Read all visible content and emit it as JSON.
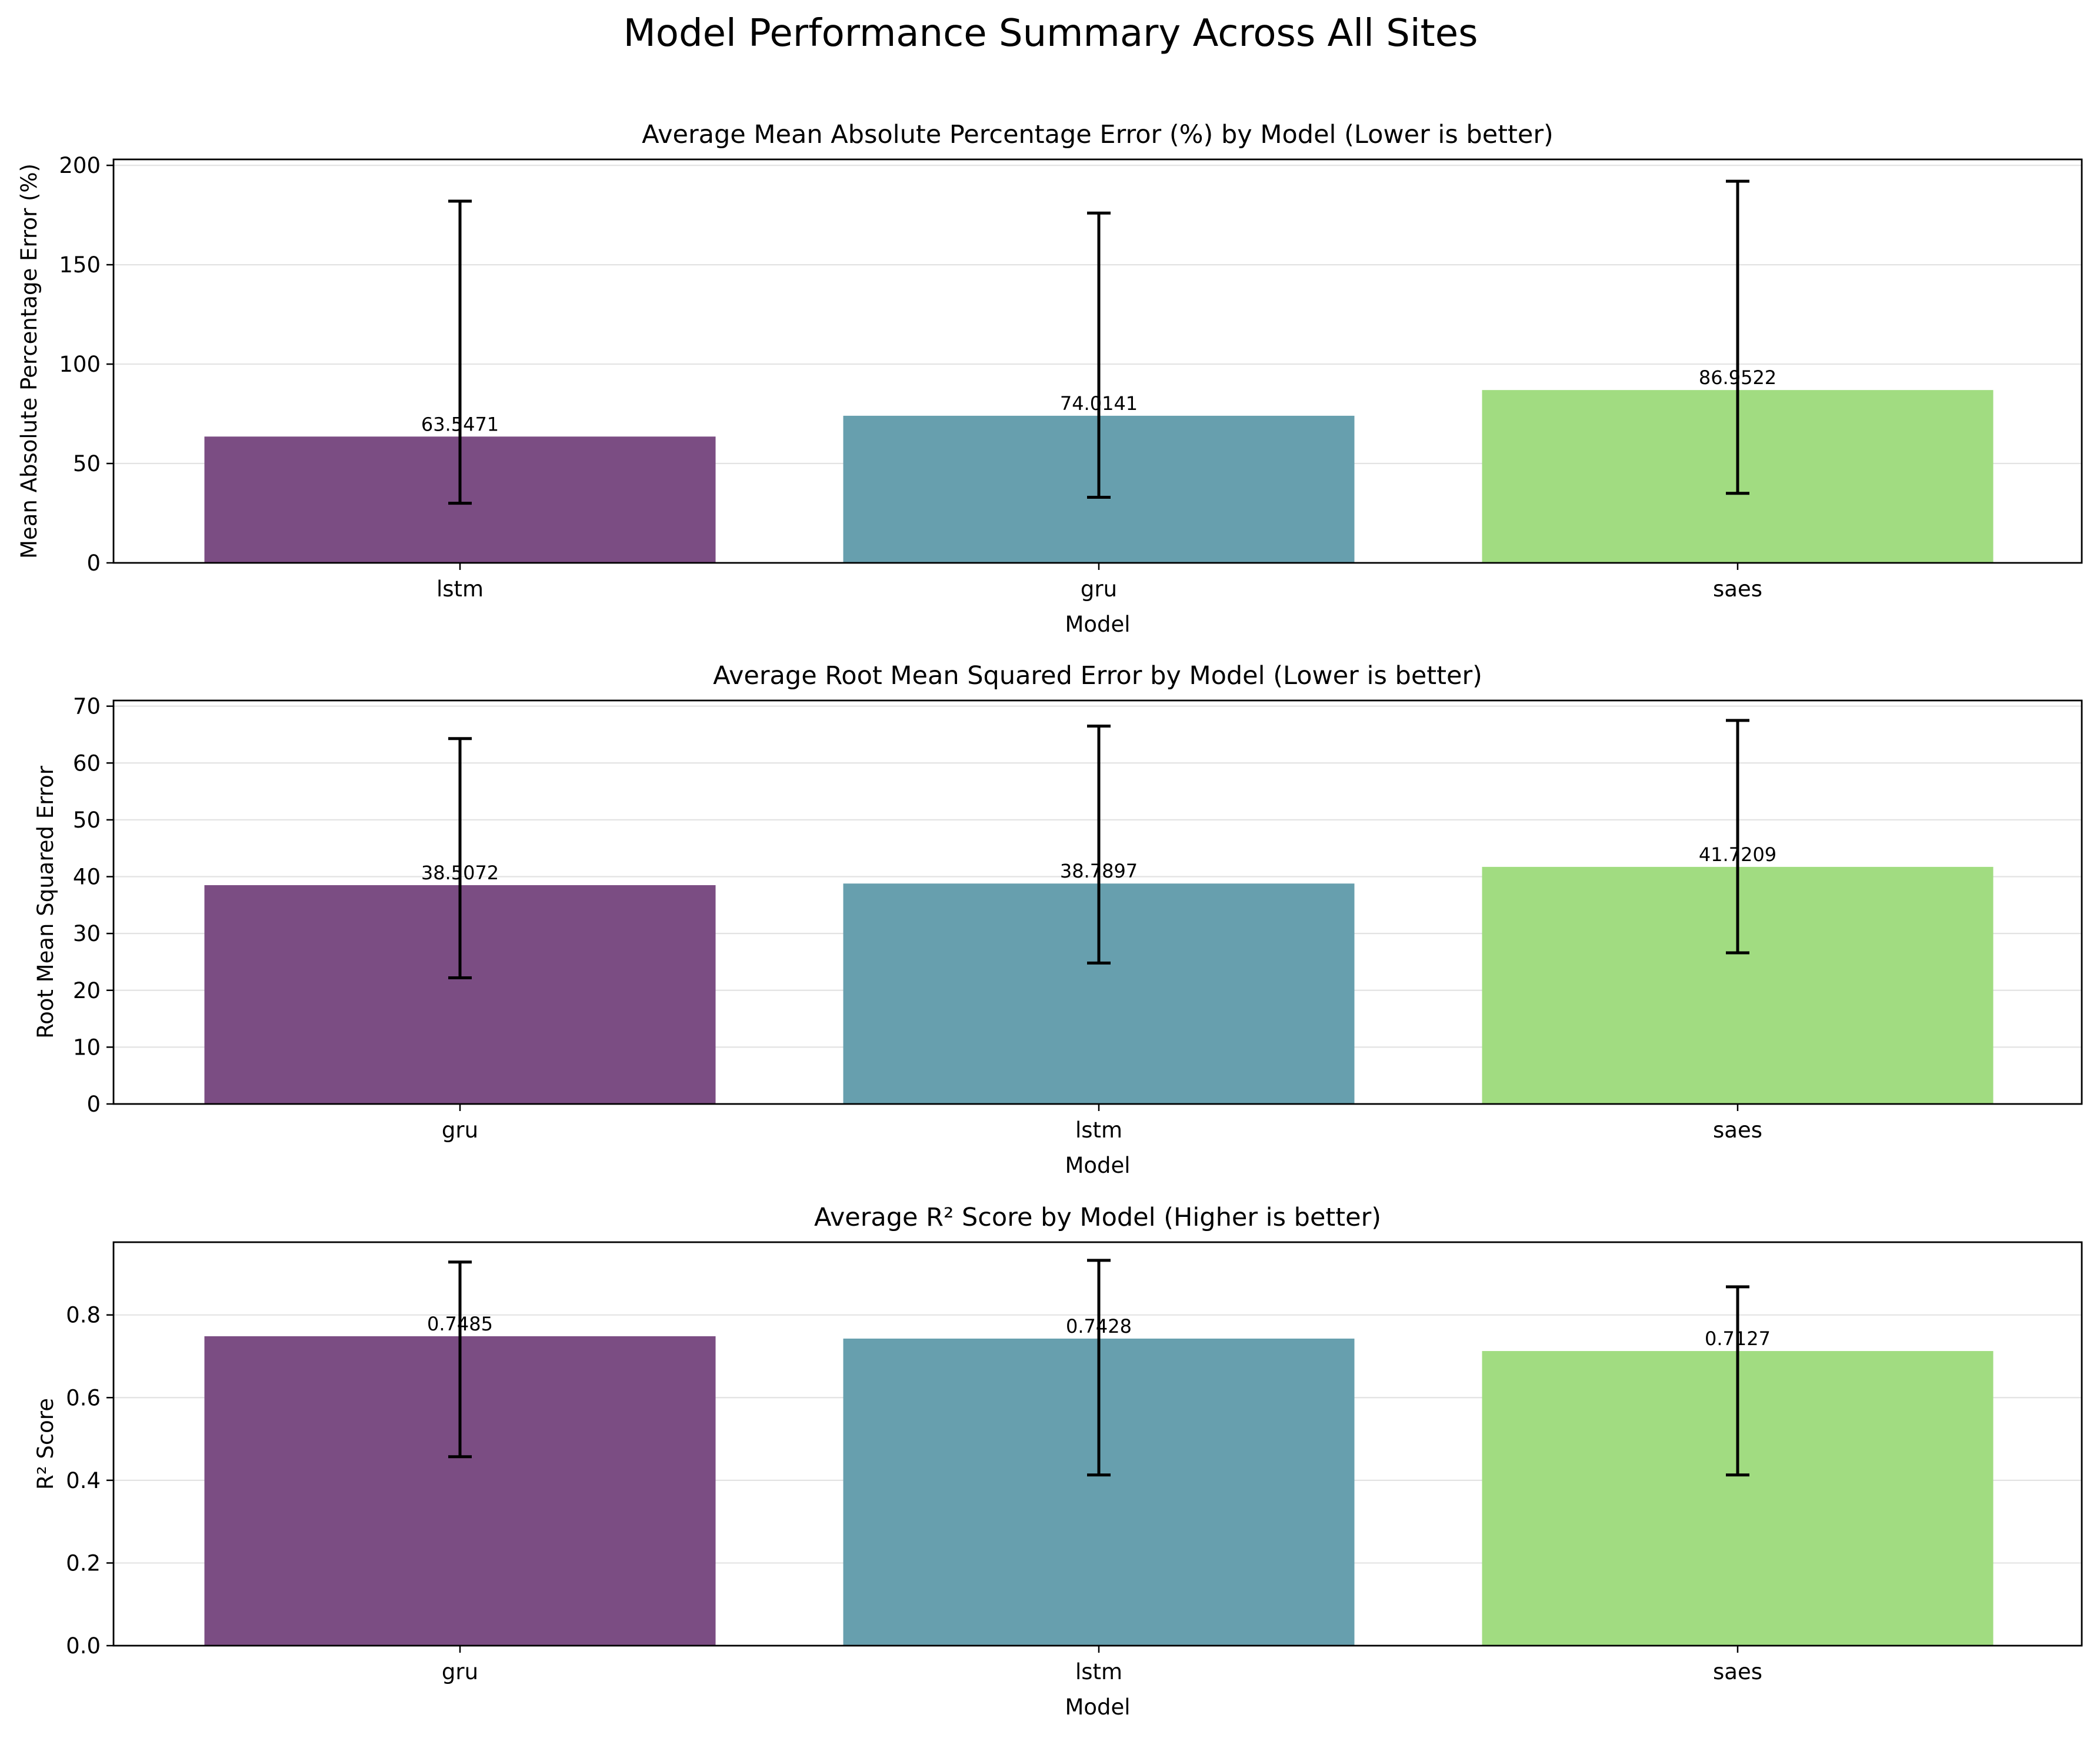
{
  "figure": {
    "title": "Model Performance Summary Across All Sites"
  },
  "chart_data": [
    {
      "type": "bar",
      "title": "Average Mean Absolute Percentage Error (%) by Model (Lower is better)",
      "xlabel": "Model",
      "ylabel": "Mean Absolute Percentage Error (%)",
      "categories": [
        "lstm",
        "gru",
        "saes"
      ],
      "values": [
        63.5471,
        74.0141,
        86.9522
      ],
      "value_labels": [
        "63.5471",
        "74.0141",
        "86.9522"
      ],
      "error_low": [
        30,
        33,
        35
      ],
      "error_high": [
        182,
        176,
        192
      ],
      "ylim": [
        0,
        203
      ],
      "yticks": [
        0,
        50,
        100,
        150,
        200
      ],
      "ytick_labels": [
        "0",
        "50",
        "100",
        "150",
        "200"
      ],
      "colors": [
        "#7b4d83",
        "#679fae",
        "#a1dc81"
      ],
      "grid": true,
      "legend": "none"
    },
    {
      "type": "bar",
      "title": "Average Root Mean Squared Error by Model (Lower is better)",
      "xlabel": "Model",
      "ylabel": "Root Mean Squared Error",
      "categories": [
        "gru",
        "lstm",
        "saes"
      ],
      "values": [
        38.5072,
        38.7897,
        41.7209
      ],
      "value_labels": [
        "38.5072",
        "38.7897",
        "41.7209"
      ],
      "error_low": [
        22.2,
        24.8,
        26.6
      ],
      "error_high": [
        64.3,
        66.5,
        67.5
      ],
      "ylim": [
        0,
        71
      ],
      "yticks": [
        0,
        10,
        20,
        30,
        40,
        50,
        60,
        70
      ],
      "ytick_labels": [
        "0",
        "10",
        "20",
        "30",
        "40",
        "50",
        "60",
        "70"
      ],
      "colors": [
        "#7b4d83",
        "#679fae",
        "#a1dc81"
      ],
      "grid": true,
      "legend": "none"
    },
    {
      "type": "bar",
      "title": "Average R² Score by Model (Higher is better)",
      "xlabel": "Model",
      "ylabel": "R² Score",
      "categories": [
        "gru",
        "lstm",
        "saes"
      ],
      "values": [
        0.7485,
        0.7428,
        0.7127
      ],
      "value_labels": [
        "0.7485",
        "0.7428",
        "0.7127"
      ],
      "error_low": [
        0.457,
        0.413,
        0.413
      ],
      "error_high": [
        0.928,
        0.932,
        0.868
      ],
      "ylim": [
        0,
        0.976
      ],
      "yticks": [
        0,
        0.2,
        0.4,
        0.6,
        0.8
      ],
      "ytick_labels": [
        "0.0",
        "0.2",
        "0.4",
        "0.6",
        "0.8"
      ],
      "colors": [
        "#7b4d83",
        "#679fae",
        "#a1dc81"
      ],
      "grid": true,
      "legend": "none"
    }
  ]
}
